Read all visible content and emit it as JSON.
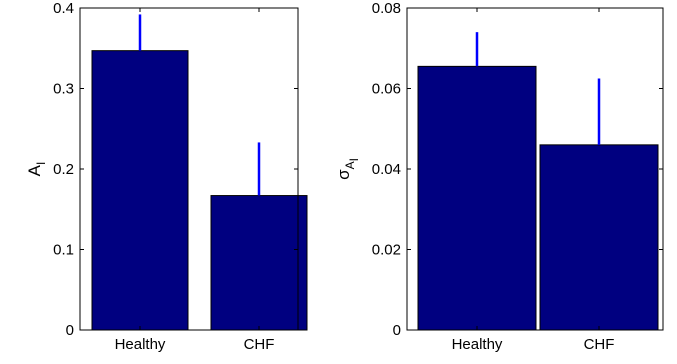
{
  "chart_data": [
    {
      "type": "bar",
      "categories": [
        "Healthy",
        "CHF"
      ],
      "values": [
        0.347,
        0.167
      ],
      "error_upper": [
        0.392,
        0.233
      ],
      "ylim": [
        0,
        0.4
      ],
      "yticks": [
        0,
        0.1,
        0.2,
        0.3,
        0.4
      ],
      "ytick_labels": [
        "0",
        "0.1",
        "0.2",
        "0.3",
        "0.4"
      ],
      "ylabel": {
        "main": "A",
        "sub": "I"
      },
      "xlabel": "",
      "title": "",
      "grid": false,
      "bar_color": "#000080",
      "error_color": "#0000ff"
    },
    {
      "type": "bar",
      "categories": [
        "Healthy",
        "CHF"
      ],
      "values": [
        0.0655,
        0.046
      ],
      "error_upper": [
        0.074,
        0.0625
      ],
      "ylim": [
        0,
        0.08
      ],
      "yticks": [
        0,
        0.02,
        0.04,
        0.06,
        0.08
      ],
      "ytick_labels": [
        "0",
        "0.02",
        "0.04",
        "0.06",
        "0.08"
      ],
      "ylabel": {
        "main": "σ",
        "sub": "A",
        "subsub": "I"
      },
      "xlabel": "",
      "title": "",
      "grid": false,
      "bar_color": "#000080",
      "error_color": "#0000ff"
    }
  ]
}
